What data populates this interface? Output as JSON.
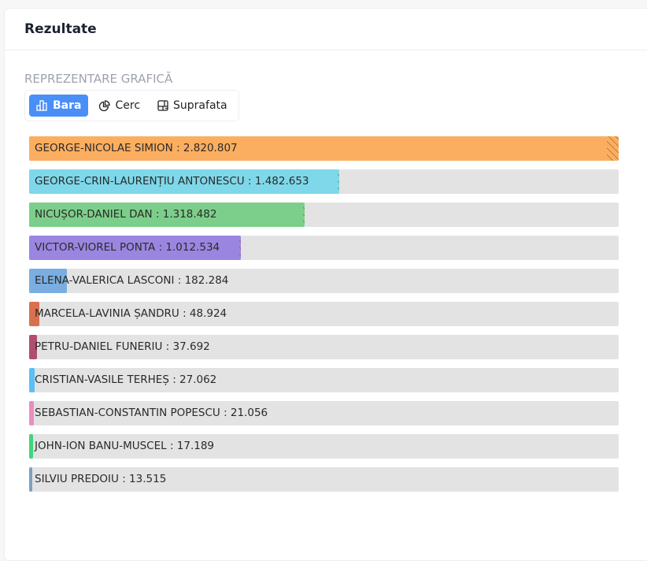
{
  "header": {
    "title": "Rezultate"
  },
  "section_label": "REPREZENTARE GRAFICĂ",
  "tabs": [
    {
      "label": "Bara",
      "icon": "bar-chart-icon",
      "active": true
    },
    {
      "label": "Cerc",
      "icon": "pie-chart-icon",
      "active": false
    },
    {
      "label": "Suprafata",
      "icon": "treemap-icon",
      "active": false
    }
  ],
  "chart_data": {
    "type": "bar",
    "orientation": "horizontal",
    "categories": [
      "GEORGE-NICOLAE SIMION",
      "GEORGE-CRIN-LAURENȚIU ANTONESCU",
      "NICUȘOR-DANIEL DAN",
      "VICTOR-VIOREL PONTA",
      "ELENA-VALERICA LASCONI",
      "MARCELA-LAVINIA ȘANDRU",
      "PETRU-DANIEL FUNERIU",
      "CRISTIAN-VASILE TERHEȘ",
      "SEBASTIAN-CONSTANTIN POPESCU",
      "JOHN-ION BANU-MUSCEL",
      "SILVIU PREDOIU"
    ],
    "values": [
      2820807,
      1482653,
      1318482,
      1012534,
      182284,
      48924,
      37692,
      27062,
      21056,
      17189,
      13515
    ],
    "labels": [
      "GEORGE-NICOLAE SIMION : 2.820.807",
      "GEORGE-CRIN-LAURENȚIU ANTONESCU : 1.482.653",
      "NICUȘOR-DANIEL DAN : 1.318.482",
      "VICTOR-VIOREL PONTA : 1.012.534",
      "ELENA-VALERICA LASCONI : 182.284",
      "MARCELA-LAVINIA ȘANDRU : 48.924",
      "PETRU-DANIEL FUNERIU : 37.692",
      "CRISTIAN-VASILE TERHEȘ : 27.062",
      "SEBASTIAN-CONSTANTIN POPESCU : 21.056",
      "JOHN-ION BANU-MUSCEL : 17.189",
      "SILVIU PREDOIU : 13.515"
    ],
    "colors": [
      "#fbae60",
      "#7ed8ea",
      "#7ccf8a",
      "#9a86e0",
      "#7aaee0",
      "#d9714f",
      "#b04e72",
      "#5bc0f5",
      "#e88fbf",
      "#3fd67e",
      "#7d9fc2"
    ],
    "xlim": [
      0,
      2820807
    ]
  }
}
